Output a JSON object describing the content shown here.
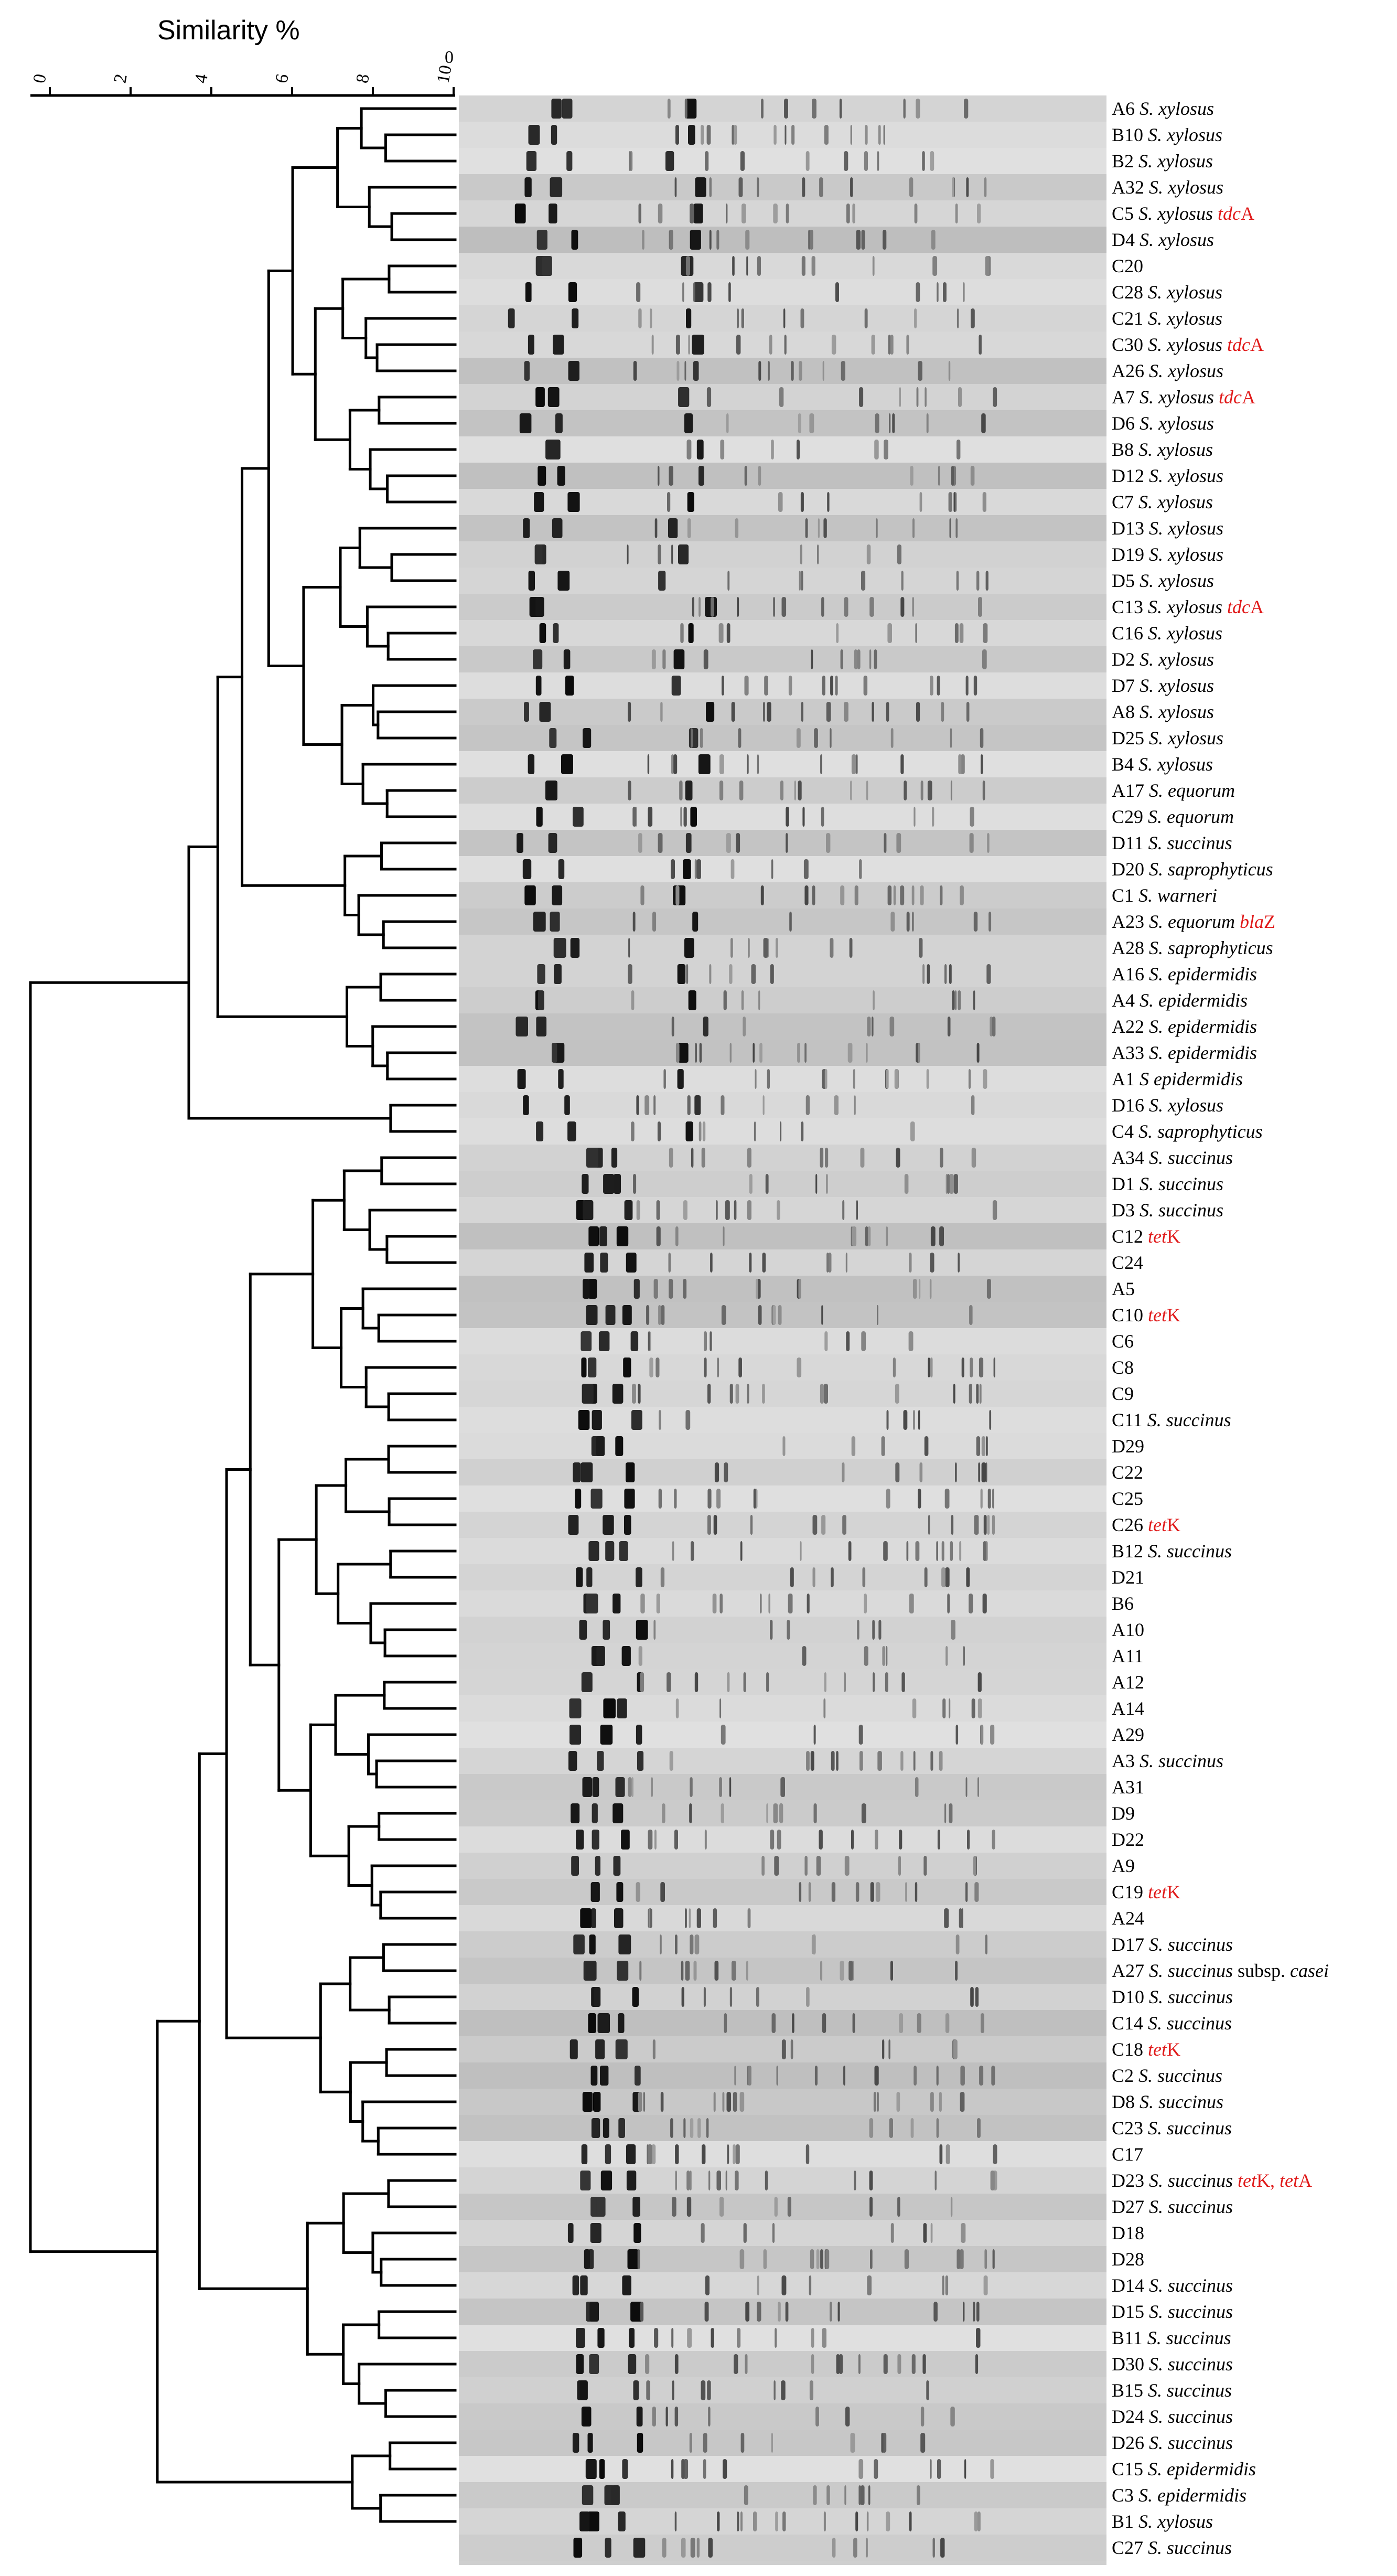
{
  "figure": {
    "title": "Similarity %",
    "axis_ticks": [
      "0",
      "2",
      "4",
      "6",
      "8",
      "10"
    ],
    "axis_top_label": "0",
    "colors": {
      "gene": "#e01a1a",
      "line": "#000000",
      "gel_bg": "#c8c8c8"
    }
  },
  "lanes": [
    {
      "id": "A6",
      "species": "S. xylosus"
    },
    {
      "id": "B10",
      "species": "S. xylosus"
    },
    {
      "id": "B2",
      "species": "S. xylosus"
    },
    {
      "id": "A32",
      "species": "S. xylosus"
    },
    {
      "id": "C5",
      "species": "S. xylosus",
      "gene_it": "tdc",
      "gene_rest": "A"
    },
    {
      "id": "D4",
      "species": "S. xylosus"
    },
    {
      "id": "C20"
    },
    {
      "id": "C28",
      "species": "S. xylosus"
    },
    {
      "id": "C21",
      "species": "S. xylosus"
    },
    {
      "id": "C30",
      "species": "S. xylosus",
      "gene_it": "tdc",
      "gene_rest": "A"
    },
    {
      "id": "A26",
      "species": "S. xylosus"
    },
    {
      "id": "A7",
      "species": "S. xylosus",
      "gene_it": "tdc",
      "gene_rest": "A"
    },
    {
      "id": "D6",
      "species": "S. xylosus"
    },
    {
      "id": "B8",
      "species": "S. xylosus"
    },
    {
      "id": "D12",
      "species": "S. xylosus"
    },
    {
      "id": "C7",
      "species": "S. xylosus"
    },
    {
      "id": "D13",
      "species": "S. xylosus"
    },
    {
      "id": "D19",
      "species": "S. xylosus"
    },
    {
      "id": "D5",
      "species": "S. xylosus"
    },
    {
      "id": "C13",
      "species": "S. xylosus",
      "gene_it": "tdc",
      "gene_rest": "A"
    },
    {
      "id": "C16",
      "species": "S. xylosus"
    },
    {
      "id": "D2",
      "species": "S. xylosus"
    },
    {
      "id": "D7",
      "species": "S. xylosus"
    },
    {
      "id": "A8",
      "species": "S. xylosus"
    },
    {
      "id": "D25",
      "species": "S. xylosus"
    },
    {
      "id": "B4",
      "species": "S. xylosus"
    },
    {
      "id": "A17",
      "species": "S. equorum"
    },
    {
      "id": "C29",
      "species": "S. equorum"
    },
    {
      "id": "D11",
      "species": "S. succinus"
    },
    {
      "id": "D20",
      "species": "S. saprophyticus"
    },
    {
      "id": "C1",
      "species": "S. warneri"
    },
    {
      "id": "A23",
      "species": "S. equorum",
      "gene_it": "bla",
      "gene_rest": "Z"
    },
    {
      "id": "A28",
      "species": "S. saprophyticus"
    },
    {
      "id": "A16",
      "species": "S. epidermidis"
    },
    {
      "id": "A4",
      "species": "S. epidermidis"
    },
    {
      "id": "A22",
      "species": "S. epidermidis"
    },
    {
      "id": "A33",
      "species": "S. epidermidis"
    },
    {
      "id": "A1",
      "species": "S epidermidis"
    },
    {
      "id": "D16",
      "species": "S. xylosus"
    },
    {
      "id": "C4",
      "species": "S. saprophyticus"
    },
    {
      "id": "A34",
      "species": "S. succinus"
    },
    {
      "id": "D1",
      "species": "S. succinus"
    },
    {
      "id": "D3",
      "species": "S. succinus"
    },
    {
      "id": "C12",
      "gene_it": "tet",
      "gene_rest": "K"
    },
    {
      "id": "C24"
    },
    {
      "id": "A5"
    },
    {
      "id": "C10",
      "gene_it": "tet",
      "gene_rest": "K"
    },
    {
      "id": "C6"
    },
    {
      "id": "C8"
    },
    {
      "id": "C9"
    },
    {
      "id": "C11",
      "species": "S. succinus"
    },
    {
      "id": "D29"
    },
    {
      "id": "C22"
    },
    {
      "id": "C25"
    },
    {
      "id": "C26",
      "gene_it": "tet",
      "gene_rest": "K"
    },
    {
      "id": "B12",
      "species": "S. succinus"
    },
    {
      "id": "D21"
    },
    {
      "id": "B6"
    },
    {
      "id": "A10"
    },
    {
      "id": "A11"
    },
    {
      "id": "A12"
    },
    {
      "id": "A14"
    },
    {
      "id": "A29"
    },
    {
      "id": "A3",
      "species": "S. succinus"
    },
    {
      "id": "A31"
    },
    {
      "id": "D9"
    },
    {
      "id": "D22"
    },
    {
      "id": "A9"
    },
    {
      "id": "C19",
      "gene_it": "tet",
      "gene_rest": "K"
    },
    {
      "id": "A24"
    },
    {
      "id": "D17",
      "species": "S. succinus"
    },
    {
      "id": "A27",
      "species": "S. succinus",
      "extra": "subsp.",
      "extra_it": "casei"
    },
    {
      "id": "D10",
      "species": "S. succinus"
    },
    {
      "id": "C14",
      "species": "S. succinus"
    },
    {
      "id": "C18",
      "gene_it": "tet",
      "gene_rest": "K"
    },
    {
      "id": "C2",
      "species": "S. succinus"
    },
    {
      "id": "D8",
      "species": "S. succinus"
    },
    {
      "id": "C23",
      "species": "S. succinus"
    },
    {
      "id": "C17"
    },
    {
      "id": "D23",
      "species": "S. succinus",
      "gene_it": "tet",
      "gene_rest": "K,",
      "gene2_it": "tet",
      "gene2_rest": "A"
    },
    {
      "id": "D27",
      "species": "S. succinus"
    },
    {
      "id": "D18"
    },
    {
      "id": "D28"
    },
    {
      "id": "D14",
      "species": "S. succinus"
    },
    {
      "id": "D15",
      "species": "S. succinus"
    },
    {
      "id": "B11",
      "species": "S. succinus"
    },
    {
      "id": "D30",
      "species": "S. succinus"
    },
    {
      "id": "B15",
      "species": "S. succinus"
    },
    {
      "id": "D24",
      "species": "S. succinus"
    },
    {
      "id": "D26",
      "species": "S. succinus"
    },
    {
      "id": "C15",
      "species": "S. epidermidis"
    },
    {
      "id": "C3",
      "species": "S. epidermidis"
    },
    {
      "id": "B1",
      "species": "S. xylosus"
    },
    {
      "id": "C27",
      "species": "S. succinus"
    }
  ]
}
